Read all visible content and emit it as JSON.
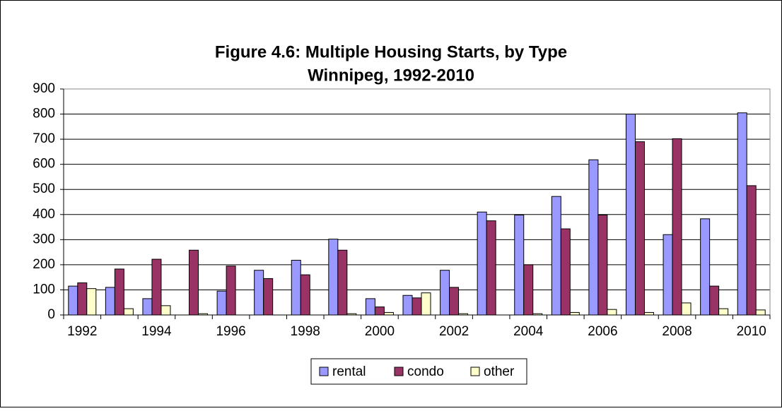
{
  "chart_data": {
    "type": "bar",
    "title": "Figure 4.6: Multiple Housing Starts, by Type",
    "subtitle": "Winnipeg, 1992-2010",
    "categories": [
      "1992",
      null,
      "1994",
      null,
      "1996",
      null,
      "1998",
      null,
      "2000",
      null,
      "2002",
      null,
      "2004",
      null,
      "2006",
      null,
      "2008",
      null,
      "2010"
    ],
    "series": [
      {
        "name": "rental",
        "color": "#9999ff",
        "values": [
          115,
          110,
          65,
          0,
          95,
          178,
          218,
          302,
          65,
          78,
          178,
          410,
          398,
          472,
          618,
          800,
          320,
          383,
          805
        ]
      },
      {
        "name": "condo",
        "color": "#993366",
        "values": [
          128,
          183,
          222,
          258,
          195,
          145,
          160,
          258,
          32,
          68,
          110,
          375,
          200,
          343,
          398,
          690,
          702,
          115,
          515
        ]
      },
      {
        "name": "other",
        "color": "#ffffcc",
        "values": [
          105,
          25,
          37,
          5,
          0,
          0,
          0,
          5,
          10,
          88,
          5,
          0,
          5,
          10,
          22,
          10,
          48,
          25,
          20
        ]
      }
    ],
    "ylim": [
      0,
      900
    ],
    "yticks": [
      0,
      100,
      200,
      300,
      400,
      500,
      600,
      700,
      800,
      900
    ],
    "grid": true,
    "legend": "bottom"
  }
}
